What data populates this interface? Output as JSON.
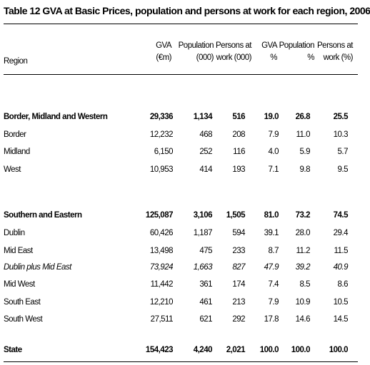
{
  "title": "Table 12  GVA at Basic Prices, population and persons at work for each region, 2006",
  "headers": {
    "region": "Region",
    "gva": [
      "GVA",
      "(€m)"
    ],
    "population": [
      "Population",
      "(000)"
    ],
    "persons": [
      "Persons at",
      "work (000)"
    ],
    "gva_pct": [
      "GVA",
      "%"
    ],
    "pop_pct": [
      "Population",
      "%"
    ],
    "persons_pct": [
      "Persons at",
      "work (%)"
    ]
  },
  "rows": [
    {
      "region": "Border, Midland and Western",
      "gva": "29,336",
      "population": "1,134",
      "persons": "516",
      "gva_pct": "19.0",
      "pop_pct": "26.8",
      "persons_pct": "25.5",
      "bold": true
    },
    {
      "region": "Border",
      "gva": "12,232",
      "population": "468",
      "persons": "208",
      "gva_pct": "7.9",
      "pop_pct": "11.0",
      "persons_pct": "10.3"
    },
    {
      "region": "Midland",
      "gva": "6,150",
      "population": "252",
      "persons": "116",
      "gva_pct": "4.0",
      "pop_pct": "5.9",
      "persons_pct": "5.7"
    },
    {
      "region": "West",
      "gva": "10,953",
      "population": "414",
      "persons": "193",
      "gva_pct": "7.1",
      "pop_pct": "9.8",
      "persons_pct": "9.5"
    },
    {
      "region": "Southern and Eastern",
      "gva": "125,087",
      "population": "3,106",
      "persons": "1,505",
      "gva_pct": "81.0",
      "pop_pct": "73.2",
      "persons_pct": "74.5",
      "bold": true
    },
    {
      "region": "Dublin",
      "gva": "60,426",
      "population": "1,187",
      "persons": "594",
      "gva_pct": "39.1",
      "pop_pct": "28.0",
      "persons_pct": "29.4"
    },
    {
      "region": "Mid East",
      "gva": "13,498",
      "population": "475",
      "persons": "233",
      "gva_pct": "8.7",
      "pop_pct": "11.2",
      "persons_pct": "11.5"
    },
    {
      "region": "Dublin plus Mid East",
      "gva": "73,924",
      "population": "1,663",
      "persons": "827",
      "gva_pct": "47.9",
      "pop_pct": "39.2",
      "persons_pct": "40.9",
      "italic": true
    },
    {
      "region": "Mid West",
      "gva": "11,442",
      "population": "361",
      "persons": "174",
      "gva_pct": "7.4",
      "pop_pct": "8.5",
      "persons_pct": "8.6"
    },
    {
      "region": "South East",
      "gva": "12,210",
      "population": "461",
      "persons": "213",
      "gva_pct": "7.9",
      "pop_pct": "10.9",
      "persons_pct": "10.5"
    },
    {
      "region": "South West",
      "gva": "27,511",
      "population": "621",
      "persons": "292",
      "gva_pct": "17.8",
      "pop_pct": "14.6",
      "persons_pct": "14.5"
    },
    {
      "region": "State",
      "gva": "154,423",
      "population": "4,240",
      "persons": "2,021",
      "gva_pct": "100.0",
      "pop_pct": "100.0",
      "persons_pct": "100.0",
      "bold": true
    }
  ]
}
